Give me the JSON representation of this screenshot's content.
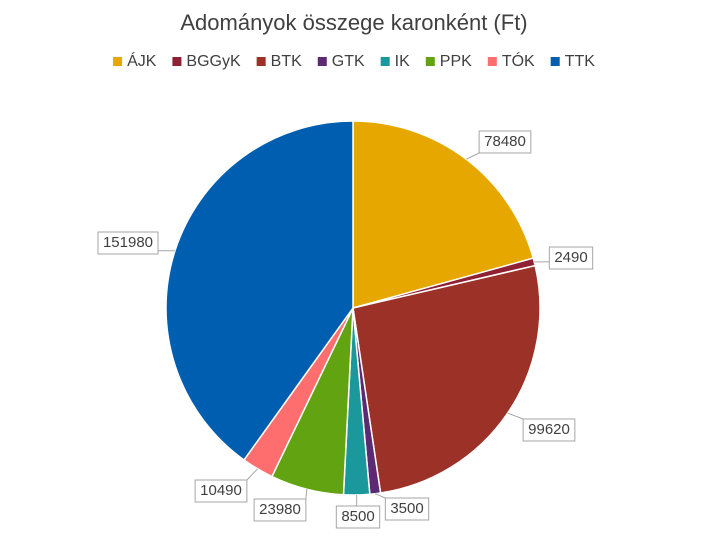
{
  "chart_data": {
    "type": "pie",
    "title": "Adományok összege karonként (Ft)",
    "categories": [
      "ÁJK",
      "BGGyK",
      "BTK",
      "GTK",
      "IK",
      "PPK",
      "TÓK",
      "TTK"
    ],
    "values": [
      78480,
      2490,
      99620,
      3500,
      8500,
      23980,
      10490,
      151980
    ],
    "colors": [
      "#E6A800",
      "#8E2132",
      "#9B3127",
      "#5C2A72",
      "#1A989C",
      "#62A312",
      "#FF6E6E",
      "#005EB0"
    ],
    "legend": "top"
  }
}
